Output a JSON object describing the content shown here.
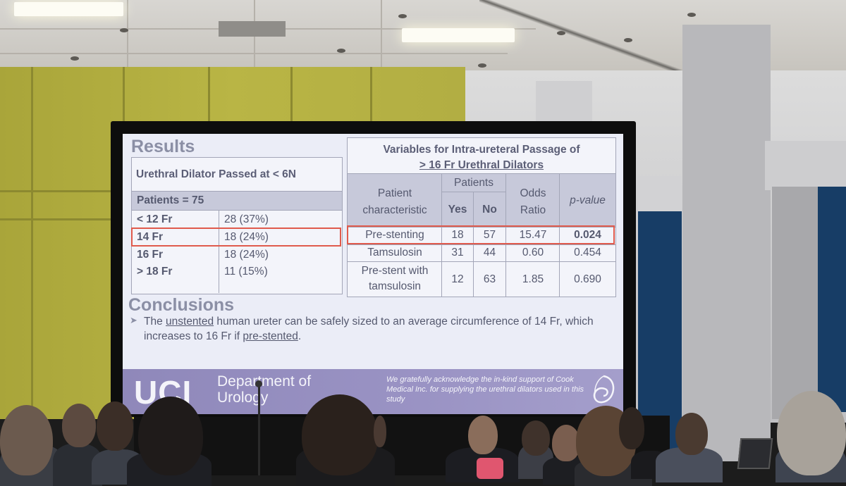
{
  "slide": {
    "results_title": "Results",
    "left_table": {
      "header": "Urethral Dilator Passed at < 6N",
      "patients_label": "Patients = 75",
      "rows": [
        {
          "size": "< 12 Fr",
          "count": "28 (37%)"
        },
        {
          "size": "14 Fr",
          "count": "18 (24%)"
        },
        {
          "size": "16 Fr",
          "count": "18 (24%)"
        },
        {
          "size": "> 18 Fr",
          "count": "11 (15%)"
        }
      ]
    },
    "right_table": {
      "title_line1": "Variables for Intra-ureteral Passage of",
      "title_line2": "> 16 Fr Urethral Dilators",
      "col_characteristic": "Patient characteristic",
      "col_patients": "Patients",
      "col_yes": "Yes",
      "col_no": "No",
      "col_odds": "Odds Ratio",
      "col_p": "p-value",
      "rows": [
        {
          "name": "Pre-stenting",
          "yes": "18",
          "no": "57",
          "odds": "15.47",
          "p": "0.024"
        },
        {
          "name": "Tamsulosin",
          "yes": "31",
          "no": "44",
          "odds": "0.60",
          "p": "0.454"
        },
        {
          "name": "Pre-stent with tamsulosin",
          "yes": "12",
          "no": "63",
          "odds": "1.85",
          "p": "0.690"
        }
      ]
    },
    "conclusions_title": "Conclusions",
    "conclusion": {
      "p1": "The ",
      "u1": "unstented",
      "p2": " human ureter can be safely sized to an average circumference of 14 Fr, which increases to 16 Fr if ",
      "u2": "pre-stented",
      "p3": "."
    },
    "footer": {
      "logo": "UCI",
      "department": "Department of Urology",
      "acknowledgement": "We gratefully acknowledge the in-kind support of Cook Medical Inc. for supplying the urethral dilators used in this study"
    }
  },
  "colors": {
    "highlight": "#e05a4c",
    "footer": "#9a93c4",
    "wall": "#b2ae43"
  }
}
